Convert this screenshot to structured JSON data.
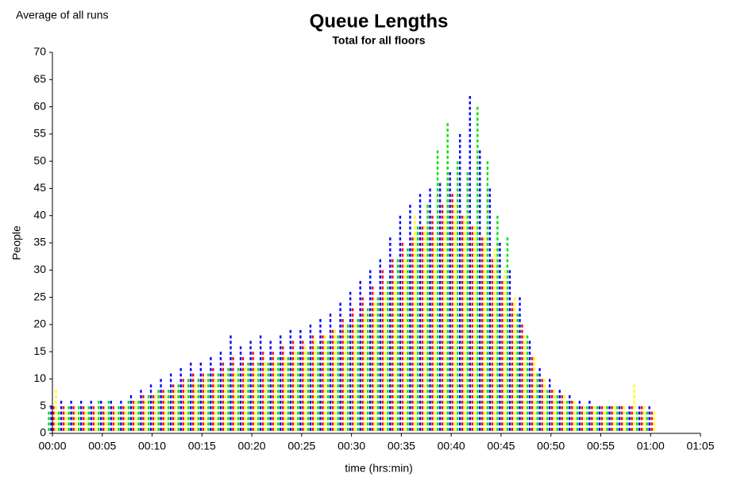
{
  "chart_data": {
    "type": "bar",
    "title": "Queue Lengths",
    "subtitle": "Total for all floors",
    "annotation": "Average of all runs",
    "x_label": "time (hrs:min)",
    "y_label": "People",
    "x": [
      0,
      1,
      2,
      3,
      4,
      5,
      6,
      7,
      8,
      9,
      10,
      11,
      12,
      13,
      14,
      15,
      16,
      17,
      18,
      19,
      20,
      21,
      22,
      23,
      24,
      25,
      26,
      27,
      28,
      29,
      30,
      31,
      32,
      33,
      34,
      35,
      36,
      37,
      38,
      39,
      40,
      41,
      42,
      43,
      44,
      45,
      46,
      47,
      48,
      49,
      50,
      51,
      52,
      53,
      54,
      55,
      56,
      57,
      58,
      59,
      60
    ],
    "series": [
      {
        "color": "#00e000",
        "values": [
          4,
          4,
          5,
          5,
          5,
          6,
          6,
          5,
          6,
          6,
          7,
          8,
          8,
          9,
          10,
          10,
          11,
          11,
          12,
          12,
          13,
          13,
          13,
          14,
          14,
          15,
          15,
          16,
          17,
          18,
          20,
          21,
          23,
          25,
          28,
          32,
          34,
          38,
          42,
          52,
          57,
          50,
          48,
          60,
          50,
          40,
          36,
          22,
          18,
          11,
          8,
          7,
          6,
          5,
          5,
          5,
          5,
          5,
          4,
          4,
          4
        ]
      },
      {
        "color": "#0000ff",
        "values": [
          5,
          6,
          6,
          6,
          6,
          6,
          6,
          6,
          7,
          8,
          9,
          10,
          11,
          12,
          13,
          13,
          14,
          15,
          18,
          16,
          17,
          18,
          17,
          18,
          19,
          19,
          20,
          21,
          22,
          24,
          26,
          28,
          30,
          32,
          36,
          40,
          42,
          44,
          45,
          46,
          48,
          55,
          62,
          52,
          45,
          35,
          30,
          25,
          17,
          12,
          10,
          8,
          7,
          6,
          6,
          5,
          5,
          5,
          5,
          5,
          5
        ]
      },
      {
        "color": "#ff0000",
        "values": [
          5,
          5,
          5,
          5,
          5,
          5,
          5,
          5,
          6,
          7,
          7,
          8,
          9,
          10,
          11,
          11,
          12,
          13,
          14,
          14,
          15,
          15,
          15,
          16,
          17,
          17,
          18,
          18,
          19,
          21,
          23,
          25,
          27,
          30,
          32,
          35,
          36,
          38,
          40,
          42,
          44,
          40,
          38,
          36,
          32,
          28,
          24,
          20,
          14,
          10,
          8,
          7,
          6,
          5,
          5,
          5,
          5,
          5,
          5,
          5,
          4
        ]
      },
      {
        "color": "#ffff00",
        "values": [
          8,
          4,
          4,
          4,
          4,
          4,
          4,
          5,
          6,
          6,
          7,
          7,
          8,
          8,
          9,
          10,
          10,
          11,
          11,
          12,
          12,
          13,
          13,
          14,
          15,
          16,
          17,
          18,
          19,
          19,
          20,
          22,
          24,
          26,
          28,
          32,
          40,
          38,
          36,
          40,
          42,
          40,
          38,
          36,
          34,
          30,
          25,
          18,
          14,
          10,
          8,
          7,
          6,
          5,
          5,
          5,
          5,
          5,
          9,
          5,
          4
        ]
      }
    ],
    "xlim": [
      0,
      65
    ],
    "xticks": [
      {
        "value": 0,
        "label": "00:00"
      },
      {
        "value": 5,
        "label": "00:05"
      },
      {
        "value": 10,
        "label": "00:10"
      },
      {
        "value": 15,
        "label": "00:15"
      },
      {
        "value": 20,
        "label": "00:20"
      },
      {
        "value": 25,
        "label": "00:25"
      },
      {
        "value": 30,
        "label": "00:30"
      },
      {
        "value": 35,
        "label": "00:35"
      },
      {
        "value": 40,
        "label": "00:40"
      },
      {
        "value": 45,
        "label": "00:45"
      },
      {
        "value": 50,
        "label": "00:50"
      },
      {
        "value": 55,
        "label": "00:55"
      },
      {
        "value": 60,
        "label": "01:00"
      },
      {
        "value": 65,
        "label": "01:05"
      }
    ],
    "ylim": [
      0,
      70
    ],
    "yticks": [
      0,
      5,
      10,
      15,
      20,
      25,
      30,
      35,
      40,
      45,
      50,
      55,
      60,
      65,
      70
    ],
    "grid": false
  }
}
